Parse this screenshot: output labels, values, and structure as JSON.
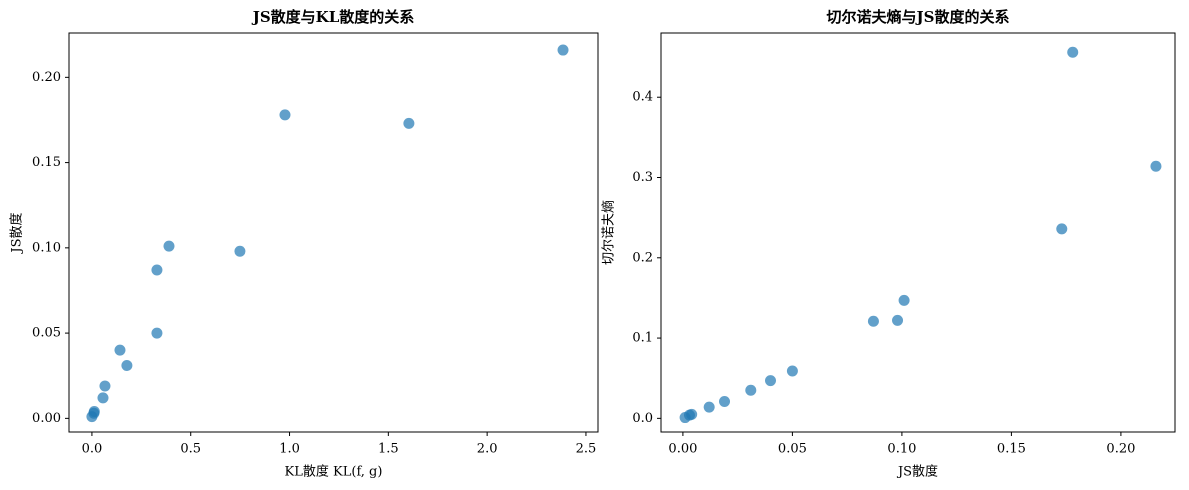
{
  "chart_data": [
    {
      "type": "scatter",
      "title": "JS散度与KL散度的关系",
      "x_label": "KL散度 KL(f, g)",
      "y_label": "JS散度",
      "color": "#1f77b4",
      "x": [
        0.0,
        0.01,
        0.012,
        0.056,
        0.066,
        0.142,
        0.177,
        0.329,
        0.329,
        0.39,
        0.749,
        0.977,
        1.604,
        2.384
      ],
      "y": [
        0.001,
        0.003,
        0.004,
        0.012,
        0.019,
        0.04,
        0.031,
        0.05,
        0.087,
        0.101,
        0.098,
        0.178,
        0.173,
        0.216
      ],
      "xlim": [
        -0.116,
        2.561
      ],
      "ylim": [
        -0.008,
        0.226
      ],
      "xticks": [
        {
          "value": 0,
          "label": "0.0"
        },
        {
          "value": 0.5,
          "label": "0.5"
        },
        {
          "value": 1,
          "label": "1.0"
        },
        {
          "value": 1.5,
          "label": "1.5"
        },
        {
          "value": 2,
          "label": "2.0"
        },
        {
          "value": 2.5,
          "label": "2.5"
        }
      ],
      "yticks": [
        {
          "value": 0,
          "label": "0.00"
        },
        {
          "value": 0.05,
          "label": "0.05"
        },
        {
          "value": 0.1,
          "label": "0.10"
        },
        {
          "value": 0.15,
          "label": "0.15"
        },
        {
          "value": 0.2,
          "label": "0.20"
        }
      ]
    },
    {
      "type": "scatter",
      "title": "切尔诺夫熵与JS散度的关系",
      "x_label": "JS散度",
      "y_label": "切尔诺夫熵",
      "color": "#1f77b4",
      "x": [
        0.001,
        0.003,
        0.004,
        0.012,
        0.019,
        0.031,
        0.04,
        0.05,
        0.087,
        0.098,
        0.101,
        0.173,
        0.178,
        0.216
      ],
      "y": [
        0.001,
        0.004,
        0.005,
        0.014,
        0.021,
        0.035,
        0.047,
        0.059,
        0.121,
        0.122,
        0.147,
        0.236,
        0.456,
        0.314
      ],
      "xlim": [
        -0.01,
        0.2247
      ],
      "ylim": [
        -0.017,
        0.48
      ],
      "xticks": [
        {
          "value": 0,
          "label": "0.00"
        },
        {
          "value": 0.05,
          "label": "0.05"
        },
        {
          "value": 0.1,
          "label": "0.10"
        },
        {
          "value": 0.15,
          "label": "0.15"
        },
        {
          "value": 0.2,
          "label": "0.20"
        }
      ],
      "yticks": [
        {
          "value": 0,
          "label": "0.0"
        },
        {
          "value": 0.1,
          "label": "0.1"
        },
        {
          "value": 0.2,
          "label": "0.2"
        },
        {
          "value": 0.3,
          "label": "0.3"
        },
        {
          "value": 0.4,
          "label": "0.4"
        }
      ]
    }
  ]
}
